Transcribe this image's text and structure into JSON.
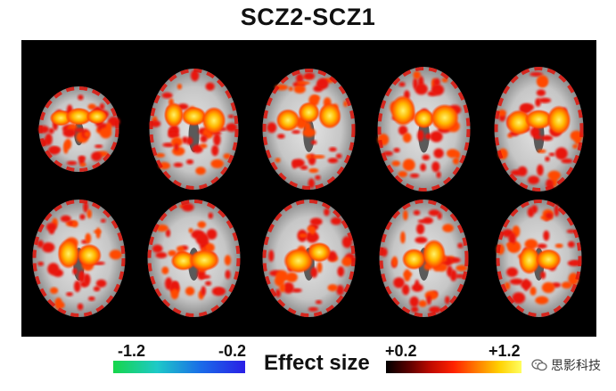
{
  "figure": {
    "title": "SCZ2-SCZ1"
  },
  "colorbar": {
    "label": "Effect size",
    "negative": {
      "min_label": "-1.2",
      "max_label": "-0.2",
      "colors": [
        "#16d64a",
        "#1dc9c8",
        "#1a6be8",
        "#2a1fe6"
      ]
    },
    "positive": {
      "min_label": "+0.2",
      "max_label": "+1.2",
      "colors": [
        "#000000",
        "#c10a00",
        "#ff7a00",
        "#ffd000",
        "#fffe60"
      ]
    }
  },
  "brain_slices": {
    "rows": 2,
    "columns": 5,
    "background_color": "#000000",
    "icon": "axial-brain-slice"
  },
  "watermark": {
    "text": "思影科技",
    "icon": "wechat-icon"
  }
}
